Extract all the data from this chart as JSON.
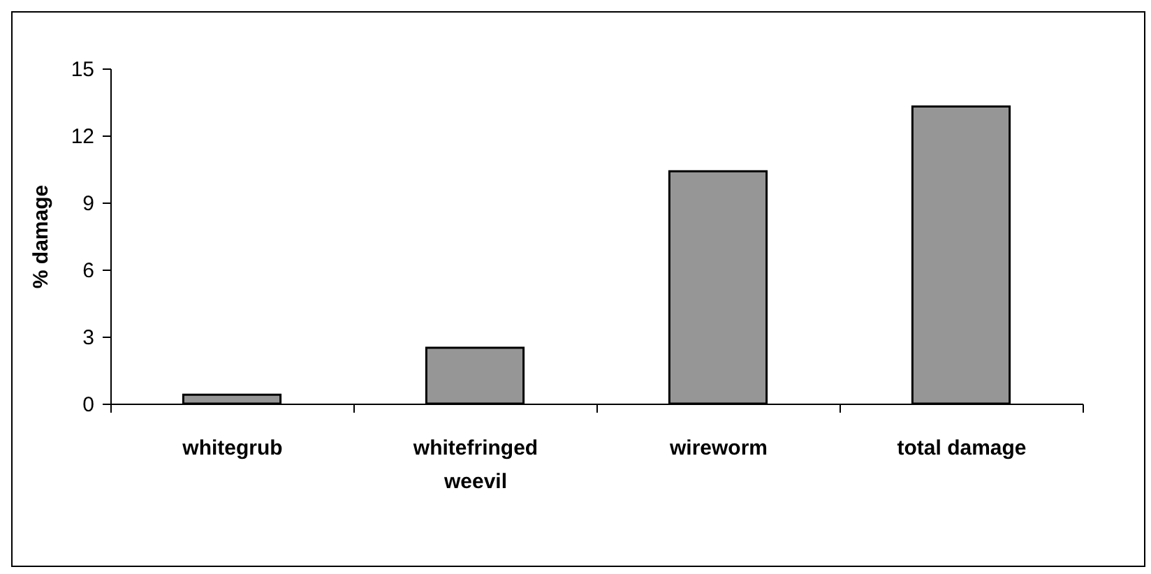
{
  "chart_data": {
    "type": "bar",
    "ylabel": "% damage",
    "categories": [
      "whitegrub",
      "whitefringed weevil",
      "wireworm",
      "total damage"
    ],
    "values": [
      0.4,
      2.5,
      10.4,
      13.3
    ],
    "color": "#969696",
    "ylim": [
      0,
      15
    ],
    "yticks": [
      0,
      3,
      6,
      9,
      12,
      15
    ],
    "grid": false
  }
}
